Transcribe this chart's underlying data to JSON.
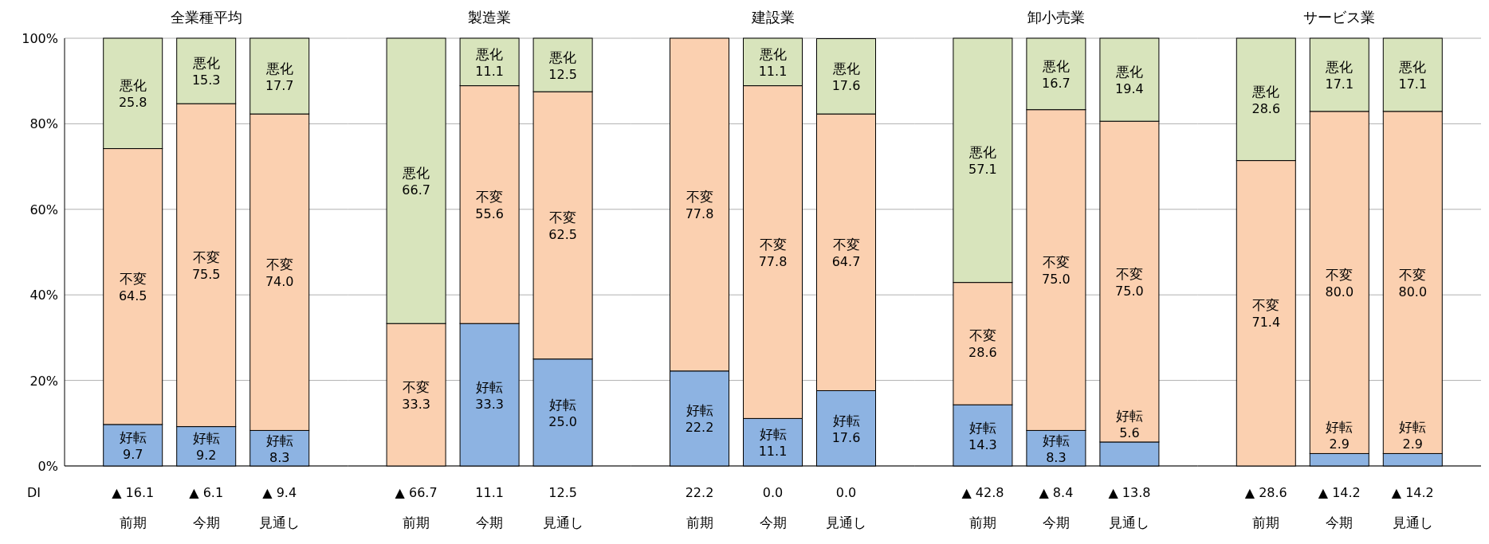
{
  "chart_data": [
    {
      "type": "bar",
      "stacked": true,
      "title": "全業種平均",
      "categories": [
        "前期",
        "今期",
        "見通し"
      ],
      "ylim": [
        0,
        100
      ],
      "yticks": [
        {
          "value": 0,
          "label": "0%"
        },
        {
          "value": 20,
          "label": "20%"
        },
        {
          "value": 40,
          "label": "40%"
        },
        {
          "value": 60,
          "label": "60%"
        },
        {
          "value": 80,
          "label": "80%"
        },
        {
          "value": 100,
          "label": "100%"
        }
      ],
      "grid": "y",
      "series": [
        {
          "name": "好転",
          "color": "#8db3e2",
          "values": [
            9.7,
            9.2,
            8.3
          ],
          "value_labels": [
            "9.7",
            "9.2",
            "8.3"
          ]
        },
        {
          "name": "不変",
          "color": "#fbd0b0",
          "values": [
            64.5,
            75.5,
            74.0
          ],
          "value_labels": [
            "64.5",
            "75.5",
            "74.0"
          ]
        },
        {
          "name": "悪化",
          "color": "#d8e4bc",
          "values": [
            25.8,
            15.3,
            17.7
          ],
          "value_labels": [
            "25.8",
            "15.3",
            "17.7"
          ]
        }
      ],
      "annotations": [
        "DI",
        "▲ 16.1",
        "▲ 6.1",
        "▲ 9.4"
      ]
    },
    {
      "type": "bar",
      "stacked": true,
      "title": "製造業",
      "categories": [
        "前期",
        "今期",
        "見通し"
      ],
      "ylim": [
        0,
        100
      ],
      "yticks": [
        {
          "value": 0,
          "label": null
        },
        {
          "value": 20,
          "label": null
        },
        {
          "value": 40,
          "label": null
        },
        {
          "value": 60,
          "label": null
        },
        {
          "value": 80,
          "label": null
        },
        {
          "value": 100,
          "label": null
        }
      ],
      "grid": "y",
      "tick_labels": "x",
      "series": [
        {
          "name": "好転",
          "color": "#8db3e2",
          "values": [
            0,
            33.3,
            25.0
          ],
          "value_labels": [
            null,
            "33.3",
            "25.0"
          ]
        },
        {
          "name": "不変",
          "color": "#fbd0b0",
          "values": [
            33.3,
            55.6,
            62.5
          ],
          "value_labels": [
            "33.3",
            "55.6",
            "62.5"
          ]
        },
        {
          "name": "悪化",
          "color": "#d8e4bc",
          "values": [
            66.7,
            11.1,
            12.5
          ],
          "value_labels": [
            "66.7",
            "11.1",
            "12.5"
          ]
        }
      ],
      "annotations": [
        "▲ 66.7",
        "11.1",
        "12.5"
      ]
    },
    {
      "type": "bar",
      "stacked": true,
      "title": "建設業",
      "categories": [
        "前期",
        "今期",
        "見通し"
      ],
      "ylim": [
        0,
        100
      ],
      "yticks": [
        {
          "value": 0,
          "label": null
        },
        {
          "value": 20,
          "label": null
        },
        {
          "value": 40,
          "label": null
        },
        {
          "value": 60,
          "label": null
        },
        {
          "value": 80,
          "label": null
        },
        {
          "value": 100,
          "label": null
        }
      ],
      "grid": "y",
      "tick_labels": "x",
      "series": [
        {
          "name": "好転",
          "color": "#8db3e2",
          "values": [
            22.2,
            11.1,
            17.6
          ],
          "value_labels": [
            "22.2",
            "11.1",
            "17.6"
          ]
        },
        {
          "name": "不変",
          "color": "#fbd0b0",
          "values": [
            77.8,
            77.8,
            64.7
          ],
          "value_labels": [
            "77.8",
            "77.8",
            "64.7"
          ]
        },
        {
          "name": "悪化",
          "color": "#d8e4bc",
          "values": [
            0,
            11.1,
            17.6
          ],
          "value_labels": [
            null,
            "11.1",
            "17.6"
          ]
        }
      ],
      "annotations": [
        "22.2",
        "0.0",
        "0.0"
      ]
    },
    {
      "type": "bar",
      "stacked": true,
      "title": "卸小売業",
      "categories": [
        "前期",
        "今期",
        "見通し"
      ],
      "ylim": [
        0,
        100
      ],
      "yticks": [
        {
          "value": 0,
          "label": null
        },
        {
          "value": 20,
          "label": null
        },
        {
          "value": 40,
          "label": null
        },
        {
          "value": 60,
          "label": null
        },
        {
          "value": 80,
          "label": null
        },
        {
          "value": 100,
          "label": null
        }
      ],
      "grid": "y",
      "tick_labels": "x",
      "series": [
        {
          "name": "好転",
          "color": "#8db3e2",
          "values": [
            14.3,
            8.3,
            5.6
          ],
          "value_labels": [
            "14.3",
            "8.3",
            "5.6"
          ]
        },
        {
          "name": "不変",
          "color": "#fbd0b0",
          "values": [
            28.6,
            75.0,
            75.0
          ],
          "value_labels": [
            "28.6",
            "75.0",
            "75.0"
          ]
        },
        {
          "name": "悪化",
          "color": "#d8e4bc",
          "values": [
            57.1,
            16.7,
            19.4
          ],
          "value_labels": [
            "57.1",
            "16.7",
            "19.4"
          ]
        }
      ],
      "annotations": [
        "▲ 42.8",
        "▲ 8.4",
        "▲ 13.8"
      ]
    },
    {
      "type": "bar",
      "stacked": true,
      "title": "サービス業",
      "categories": [
        "前期",
        "今期",
        "見通し"
      ],
      "ylim": [
        0,
        100
      ],
      "yticks": [
        {
          "value": 0,
          "label": null
        },
        {
          "value": 20,
          "label": null
        },
        {
          "value": 40,
          "label": null
        },
        {
          "value": 60,
          "label": null
        },
        {
          "value": 80,
          "label": null
        },
        {
          "value": 100,
          "label": null
        }
      ],
      "grid": "y",
      "tick_labels": "x",
      "series": [
        {
          "name": "好転",
          "color": "#8db3e2",
          "values": [
            0,
            2.9,
            2.9
          ],
          "value_labels": [
            null,
            "2.9",
            "2.9"
          ]
        },
        {
          "name": "不変",
          "color": "#fbd0b0",
          "values": [
            71.4,
            80.0,
            80.0
          ],
          "value_labels": [
            "71.4",
            "80.0",
            "80.0"
          ]
        },
        {
          "name": "悪化",
          "color": "#d8e4bc",
          "values": [
            28.6,
            17.1,
            17.1
          ],
          "value_labels": [
            "28.6",
            "17.1",
            "17.1"
          ]
        }
      ],
      "annotations": [
        "▲ 28.6",
        "▲ 14.2",
        "▲ 14.2"
      ]
    }
  ]
}
